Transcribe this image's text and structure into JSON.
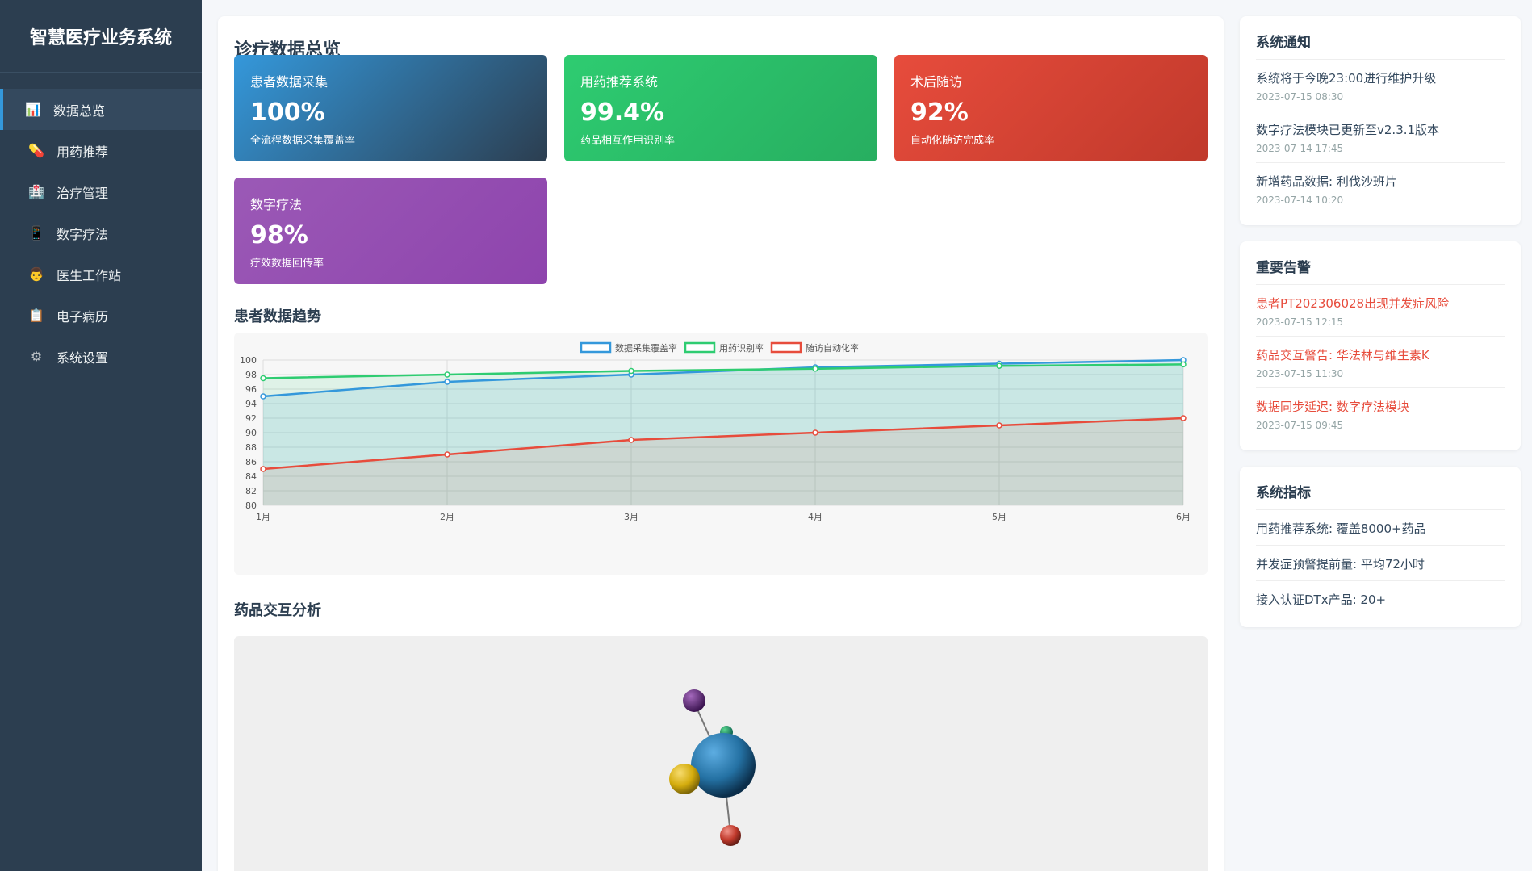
{
  "sidebar": {
    "brand": "智慧医疗业务系统",
    "items": [
      {
        "label": "数据总览",
        "icon": "chart-icon",
        "glyph": "📊",
        "active": true
      },
      {
        "label": "用药推荐",
        "icon": "pill-icon",
        "glyph": "💊",
        "active": false
      },
      {
        "label": "治疗管理",
        "icon": "hospital-icon",
        "glyph": "🏥",
        "active": false
      },
      {
        "label": "数字疗法",
        "icon": "phone-icon",
        "glyph": "📱",
        "active": false
      },
      {
        "label": "医生工作站",
        "icon": "doctor-icon",
        "glyph": "👨",
        "active": false
      },
      {
        "label": "电子病历",
        "icon": "record-icon",
        "glyph": "📋",
        "active": false
      },
      {
        "label": "系统设置",
        "icon": "gear-icon",
        "glyph": "⚙",
        "active": false
      }
    ]
  },
  "main": {
    "title": "诊疗数据总览",
    "cards": [
      {
        "title": "患者数据采集",
        "value": "100%",
        "desc": "全流程数据采集覆盖率",
        "color": "blue"
      },
      {
        "title": "用药推荐系统",
        "value": "99.4%",
        "desc": "药品相互作用识别率",
        "color": "green"
      },
      {
        "title": "术后随访",
        "value": "92%",
        "desc": "自动化随访完成率",
        "color": "red"
      },
      {
        "title": "数字疗法",
        "value": "98%",
        "desc": "疗效数据回传率",
        "color": "purple"
      }
    ],
    "trend_title": "患者数据趋势",
    "interaction_title": "药品交互分析"
  },
  "chart_data": {
    "type": "line",
    "categories": [
      "1月",
      "2月",
      "3月",
      "4月",
      "5月",
      "6月"
    ],
    "series": [
      {
        "name": "数据采集覆盖率",
        "color": "#3498db",
        "values": [
          95,
          97,
          98,
          99,
          99.5,
          100
        ]
      },
      {
        "name": "用药识别率",
        "color": "#2ecc71",
        "values": [
          97.5,
          98,
          98.5,
          98.8,
          99.2,
          99.4
        ]
      },
      {
        "name": "随访自动化率",
        "color": "#e74c3c",
        "values": [
          85,
          87,
          89,
          90,
          91,
          92
        ]
      }
    ],
    "ylim": [
      80,
      100
    ],
    "yticks": [
      80,
      82,
      84,
      86,
      88,
      90,
      92,
      94,
      96,
      98,
      100
    ],
    "legend": "top",
    "grid": true
  },
  "right": {
    "notice_title": "系统通知",
    "notices": [
      {
        "text": "系统将于今晚23:00进行维护升级",
        "time": "2023-07-15 08:30"
      },
      {
        "text": "数字疗法模块已更新至v2.3.1版本",
        "time": "2023-07-14 17:45"
      },
      {
        "text": "新增药品数据: 利伐沙班片",
        "time": "2023-07-14 10:20"
      }
    ],
    "alert_title": "重要告警",
    "alerts": [
      {
        "text": "患者PT202306028出现并发症风险",
        "time": "2023-07-15 12:15"
      },
      {
        "text": "药品交互警告: 华法林与维生素K",
        "time": "2023-07-15 11:30"
      },
      {
        "text": "数据同步延迟: 数字疗法模块",
        "time": "2023-07-15 09:45"
      }
    ],
    "metric_title": "系统指标",
    "metrics": [
      "用药推荐系统: 覆盖8000+药品",
      "并发症预警提前量: 平均72小时",
      "接入认证DTx产品: 20+"
    ]
  }
}
